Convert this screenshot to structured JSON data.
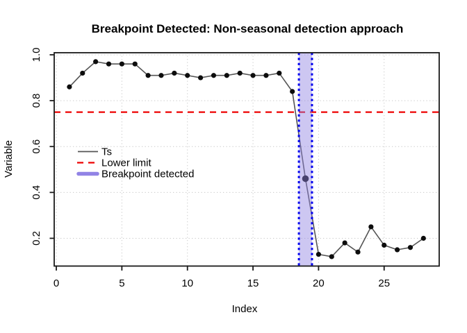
{
  "figure": {
    "title": "Breakpoint Detected: Non-seasonal detection approach"
  },
  "legend": {
    "items": [
      {
        "label": "Ts",
        "style": "solid-black-line"
      },
      {
        "label": "Lower limit",
        "style": "dashed-red-line"
      },
      {
        "label": "Breakpoint detected",
        "style": "thick-purple-line"
      }
    ]
  },
  "chart_data": {
    "type": "line",
    "title": "Breakpoint Detected: Non-seasonal detection approach",
    "xlabel": "Index",
    "ylabel": "Variable",
    "series": [
      {
        "name": "Ts",
        "x": [
          1,
          2,
          3,
          4,
          5,
          6,
          7,
          8,
          9,
          10,
          11,
          12,
          13,
          14,
          15,
          16,
          17,
          18,
          19,
          20,
          21,
          22,
          23,
          24,
          25,
          26,
          27,
          28
        ],
        "values": [
          0.86,
          0.92,
          0.97,
          0.96,
          0.96,
          0.96,
          0.91,
          0.91,
          0.92,
          0.91,
          0.9,
          0.91,
          0.91,
          0.92,
          0.91,
          0.91,
          0.92,
          0.84,
          0.46,
          0.13,
          0.12,
          0.18,
          0.14,
          0.25,
          0.17,
          0.15,
          0.16,
          0.2
        ]
      }
    ],
    "lower_limit": 0.75,
    "breakpoint": {
      "x": 19,
      "band_from": 18.5,
      "band_to": 19.5
    },
    "xticks": [
      0,
      5,
      10,
      15,
      20,
      25
    ],
    "xtick_labels": [
      "0",
      "5",
      "10",
      "15",
      "20",
      "25"
    ],
    "yticks": [
      0.2,
      0.4,
      0.6,
      0.8,
      1.0
    ],
    "ytick_labels": [
      "0.2",
      "0.4",
      "0.6",
      "0.8",
      "1.0"
    ],
    "xlim": [
      -0.16,
      29.2
    ],
    "ylim": [
      0.079,
      1.009
    ],
    "grid": true,
    "grid_style": "dotted",
    "legend_position": "left-middle",
    "colors": {
      "series_line": "#545454",
      "series_point": "#0d0d0d",
      "lower_limit": "#ed0000",
      "breakpoint_band_fill": "rgba(145,130,227,0.45)",
      "breakpoint_band_border": "#0000ee",
      "breakpoint_solid": "#9183e5",
      "grid": "#c8c8c8",
      "frame": "#1a1a1a"
    }
  }
}
